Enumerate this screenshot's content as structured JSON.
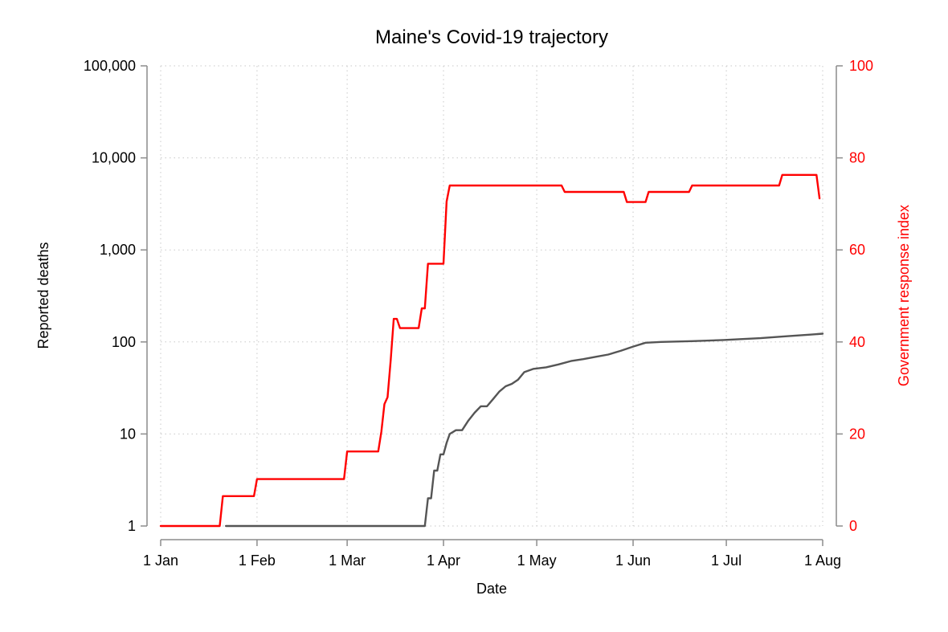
{
  "chart_data": {
    "type": "line",
    "title": "Maine's Covid-19 trajectory",
    "xlabel": "Date",
    "ylabel": "Reported deaths",
    "y2label": "Government response index",
    "x_ticks": [
      {
        "date": "2020-01-01",
        "label": "1 Jan"
      },
      {
        "date": "2020-02-01",
        "label": "1 Feb"
      },
      {
        "date": "2020-03-01",
        "label": "1 Mar"
      },
      {
        "date": "2020-04-01",
        "label": "1 Apr"
      },
      {
        "date": "2020-05-01",
        "label": "1 May"
      },
      {
        "date": "2020-06-01",
        "label": "1 Jun"
      },
      {
        "date": "2020-07-01",
        "label": "1 Jul"
      },
      {
        "date": "2020-08-01",
        "label": "1 Aug"
      }
    ],
    "xlim": [
      "2020-01-01",
      "2020-08-01"
    ],
    "y_scale": "log",
    "ylim": [
      1,
      100000
    ],
    "y_ticks": [
      {
        "value": 1,
        "label": "1"
      },
      {
        "value": 10,
        "label": "10"
      },
      {
        "value": 100,
        "label": "100"
      },
      {
        "value": 1000,
        "label": "1,000"
      },
      {
        "value": 10000,
        "label": "10,000"
      },
      {
        "value": 100000,
        "label": "100,000"
      }
    ],
    "y2lim": [
      0,
      100
    ],
    "y2_ticks": [
      {
        "value": 0,
        "label": "0"
      },
      {
        "value": 20,
        "label": "20"
      },
      {
        "value": 40,
        "label": "40"
      },
      {
        "value": 60,
        "label": "60"
      },
      {
        "value": 80,
        "label": "80"
      },
      {
        "value": 100,
        "label": "100"
      }
    ],
    "grid": true,
    "series": [
      {
        "axis": "left",
        "color": "#555555",
        "points": [
          [
            "2020-01-22",
            1
          ],
          [
            "2020-03-26",
            1
          ],
          [
            "2020-03-27",
            2
          ],
          [
            "2020-03-28",
            2
          ],
          [
            "2020-03-29",
            4
          ],
          [
            "2020-03-30",
            4
          ],
          [
            "2020-03-31",
            6
          ],
          [
            "2020-04-01",
            6
          ],
          [
            "2020-04-02",
            8
          ],
          [
            "2020-04-03",
            10
          ],
          [
            "2020-04-05",
            11
          ],
          [
            "2020-04-07",
            11
          ],
          [
            "2020-04-09",
            14
          ],
          [
            "2020-04-11",
            17
          ],
          [
            "2020-04-13",
            20
          ],
          [
            "2020-04-15",
            20
          ],
          [
            "2020-04-17",
            24
          ],
          [
            "2020-04-19",
            29
          ],
          [
            "2020-04-21",
            33
          ],
          [
            "2020-04-23",
            35
          ],
          [
            "2020-04-25",
            39
          ],
          [
            "2020-04-27",
            47
          ],
          [
            "2020-04-30",
            51
          ],
          [
            "2020-05-04",
            53
          ],
          [
            "2020-05-08",
            57
          ],
          [
            "2020-05-12",
            62
          ],
          [
            "2020-05-16",
            65
          ],
          [
            "2020-05-20",
            69
          ],
          [
            "2020-05-24",
            73
          ],
          [
            "2020-05-28",
            80
          ],
          [
            "2020-06-01",
            89
          ],
          [
            "2020-06-05",
            98
          ],
          [
            "2020-06-10",
            100
          ],
          [
            "2020-06-20",
            102
          ],
          [
            "2020-06-30",
            105
          ],
          [
            "2020-07-05",
            107
          ],
          [
            "2020-07-12",
            110
          ],
          [
            "2020-07-20",
            115
          ],
          [
            "2020-07-28",
            120
          ],
          [
            "2020-08-01",
            123
          ]
        ]
      },
      {
        "axis": "right",
        "color": "#ff0000",
        "points": [
          [
            "2020-01-01",
            0
          ],
          [
            "2020-01-20",
            0
          ],
          [
            "2020-01-21",
            6.5
          ],
          [
            "2020-01-31",
            6.5
          ],
          [
            "2020-02-01",
            10.2
          ],
          [
            "2020-02-29",
            10.2
          ],
          [
            "2020-03-01",
            16.2
          ],
          [
            "2020-03-11",
            16.2
          ],
          [
            "2020-03-12",
            20.5
          ],
          [
            "2020-03-13",
            26.5
          ],
          [
            "2020-03-14",
            28.0
          ],
          [
            "2020-03-15",
            36.0
          ],
          [
            "2020-03-16",
            45.0
          ],
          [
            "2020-03-17",
            45.0
          ],
          [
            "2020-03-18",
            43.0
          ],
          [
            "2020-03-24",
            43.0
          ],
          [
            "2020-03-25",
            47.3
          ],
          [
            "2020-03-26",
            47.3
          ],
          [
            "2020-03-27",
            57.0
          ],
          [
            "2020-04-01",
            57.0
          ],
          [
            "2020-04-02",
            70.5
          ],
          [
            "2020-04-03",
            74.0
          ],
          [
            "2020-05-09",
            74.0
          ],
          [
            "2020-05-10",
            72.6
          ],
          [
            "2020-05-29",
            72.6
          ],
          [
            "2020-05-30",
            70.4
          ],
          [
            "2020-06-05",
            70.4
          ],
          [
            "2020-06-06",
            72.6
          ],
          [
            "2020-06-19",
            72.6
          ],
          [
            "2020-06-20",
            74.0
          ],
          [
            "2020-07-18",
            74.0
          ],
          [
            "2020-07-19",
            76.3
          ],
          [
            "2020-07-30",
            76.3
          ],
          [
            "2020-07-31",
            71.2
          ]
        ]
      }
    ]
  }
}
